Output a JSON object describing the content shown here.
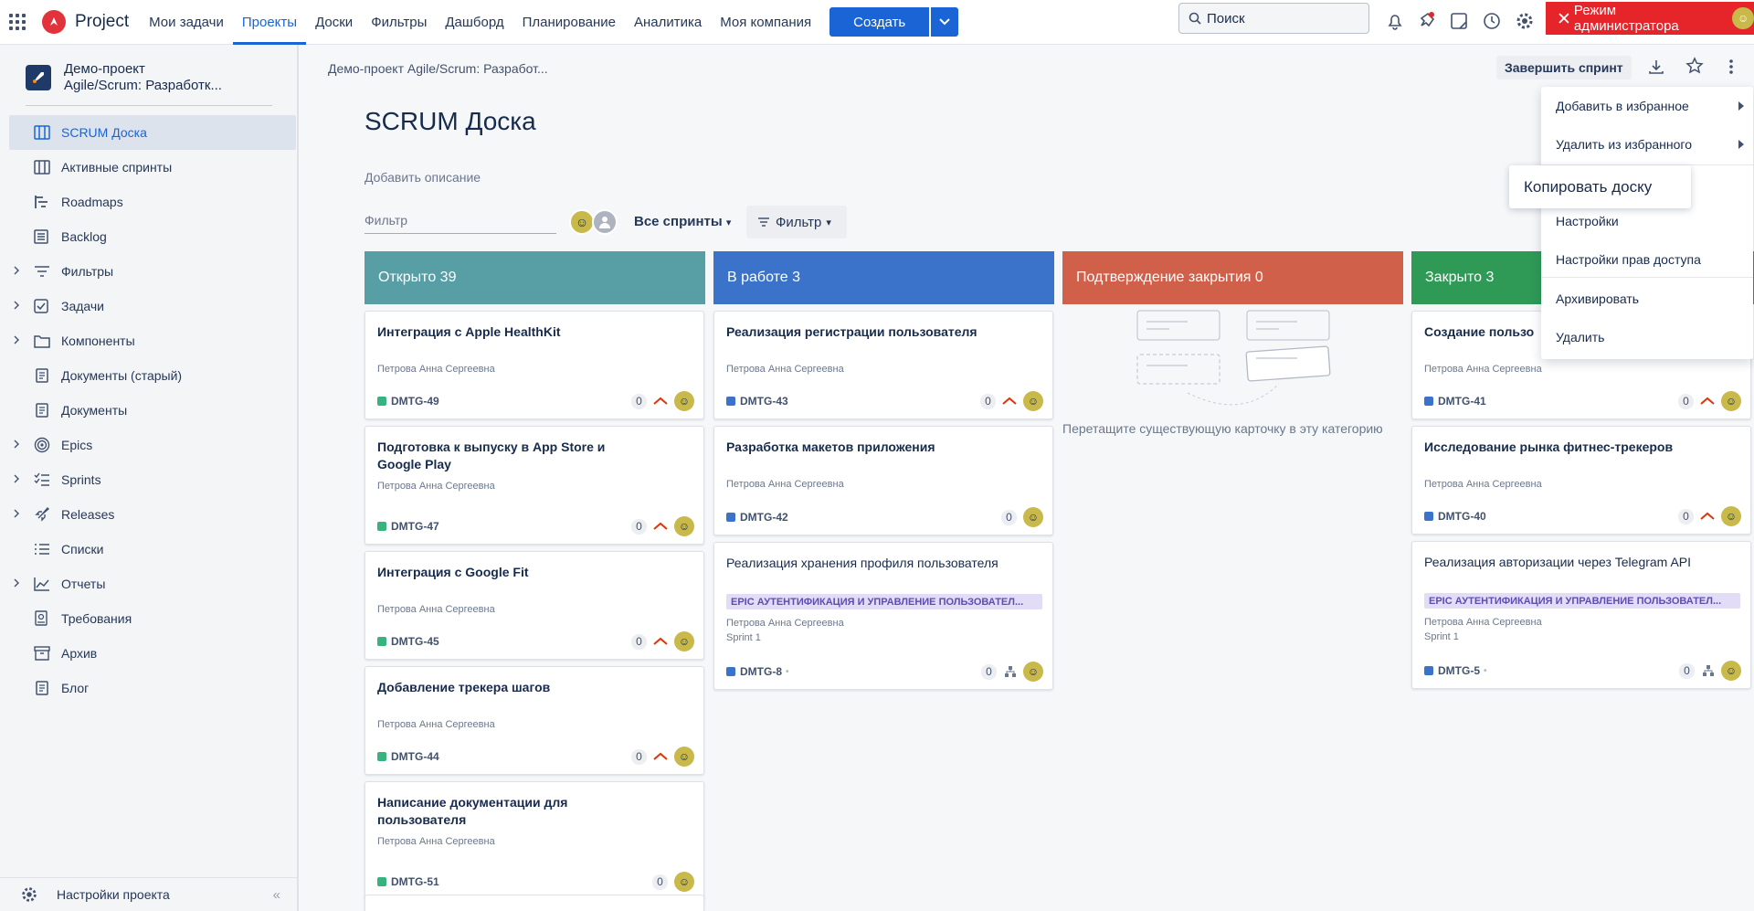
{
  "nav": {
    "brand": "Project",
    "items": [
      "Мои задачи",
      "Проекты",
      "Доски",
      "Фильтры",
      "Дашборд",
      "Планирование",
      "Аналитика",
      "Моя компания"
    ],
    "create_label": "Создать",
    "search_placeholder": "Поиск",
    "admin_label": "Режим администратора"
  },
  "sidebar": {
    "project_name_line1": "Демо-проект",
    "project_name_line2": "Agile/Scrum: Разработк...",
    "items": [
      {
        "label": "SCRUM Доска",
        "icon": "board-icon"
      },
      {
        "label": "Активные спринты",
        "icon": "board-icon"
      },
      {
        "label": "Roadmaps",
        "icon": "roadmap-icon"
      },
      {
        "label": "Backlog",
        "icon": "backlog-icon"
      },
      {
        "label": "Фильтры",
        "icon": "filter-icon"
      },
      {
        "label": "Задачи",
        "icon": "task-check-icon"
      },
      {
        "label": "Компоненты",
        "icon": "folder-icon"
      },
      {
        "label": "Документы (старый)",
        "icon": "document-icon"
      },
      {
        "label": "Документы",
        "icon": "document-icon"
      },
      {
        "label": "Epics",
        "icon": "epic-icon"
      },
      {
        "label": "Sprints",
        "icon": "sprints-icon"
      },
      {
        "label": "Releases",
        "icon": "rocket-icon"
      },
      {
        "label": "Списки",
        "icon": "list-icon"
      },
      {
        "label": "Отчеты",
        "icon": "chart-icon"
      },
      {
        "label": "Требования",
        "icon": "requirements-icon"
      },
      {
        "label": "Архив",
        "icon": "archive-icon"
      },
      {
        "label": "Блог",
        "icon": "document-icon"
      }
    ],
    "settings_label": "Настройки проекта"
  },
  "main": {
    "breadcrumb": "Демо-проект Agile/Scrum: Разработ...",
    "title": "SCRUM Доска",
    "add_description": "Добавить описание",
    "filter_placeholder": "Фильтр",
    "all_sprints": "Все спринты",
    "filter_button": "Фильтр",
    "end_sprint": "Завершить спринт",
    "empty_drop_text": "Перетащите существующую карточку в эту категорию"
  },
  "columns": [
    {
      "title": "Открыто 39",
      "color": "#579ea5",
      "cards": [
        {
          "title": "Интеграция с Apple HealthKit",
          "author": "Петрова Анна Сергеевна",
          "key": "DMTG-49",
          "count": "0",
          "priority": true
        },
        {
          "title": "Подготовка к выпуску в App Store и Google Play",
          "author": "Петрова Анна Сергеевна",
          "key": "DMTG-47",
          "count": "0",
          "priority": true
        },
        {
          "title": "Интеграция с Google Fit",
          "author": "Петрова Анна Сергеевна",
          "key": "DMTG-45",
          "count": "0",
          "priority": true
        },
        {
          "title": "Добавление трекера шагов",
          "author": "Петрова Анна Сергеевна",
          "key": "DMTG-44",
          "count": "0",
          "priority": true
        },
        {
          "title": "Написание документации для пользователя",
          "author": "Петрова Анна Сергеевна",
          "key": "DMTG-51",
          "count": "0",
          "priority": false
        }
      ]
    },
    {
      "title": "В работе 3",
      "color": "#3a73c9",
      "cards": [
        {
          "title": "Реализация регистрации пользователя",
          "author": "Петрова Анна Сергеевна",
          "key": "DMTG-43",
          "count": "0",
          "priority": true
        },
        {
          "title": "Разработка макетов приложения",
          "author": "Петрова Анна Сергеевна",
          "key": "DMTG-42",
          "count": "0",
          "priority": false
        },
        {
          "title": "Реализация хранения профиля пользователя",
          "epic": "EPIC АУТЕНТИФИКАЦИЯ И УПРАВЛЕНИЕ ПОЛЬЗОВАТЕЛ...",
          "author": "Петрова Анна Сергеевна",
          "sprint": "Sprint 1",
          "key": "DMTG-8",
          "count": "0",
          "priority": false
        }
      ]
    },
    {
      "title": "Подтверждение закрытия 0",
      "color": "#d1604a",
      "cards": []
    },
    {
      "title": "Закрыто 3",
      "color": "#2f9a56",
      "cards": [
        {
          "title": "Создание пользо",
          "author": "Петрова Анна Сергеевна",
          "key": "DMTG-41",
          "count": "0",
          "priority": true
        },
        {
          "title": "Исследование рынка фитнес-трекеров",
          "author": "Петрова Анна Сергеевна",
          "key": "DMTG-40",
          "count": "0",
          "priority": true
        },
        {
          "title": "Реализация авторизации через Telegram API",
          "epic": "EPIC АУТЕНТИФИКАЦИЯ И УПРАВЛЕНИЕ ПОЛЬЗОВАТЕЛ...",
          "author": "Петрова Анна Сергеевна",
          "sprint": "Sprint 1",
          "key": "DMTG-5",
          "count": "0",
          "priority": false
        }
      ]
    }
  ],
  "menu": {
    "items": [
      "Добавить в избранное",
      "Удалить из избранного",
      "Настройки",
      "Настройки прав доступа",
      "Архивировать",
      "Удалить"
    ],
    "copy_board": "Копировать доску"
  },
  "colors": {
    "accent": "#1a64d6",
    "admin": "#e5252a",
    "key_open": "#36b37e",
    "key_blue": "#3a73c9"
  }
}
